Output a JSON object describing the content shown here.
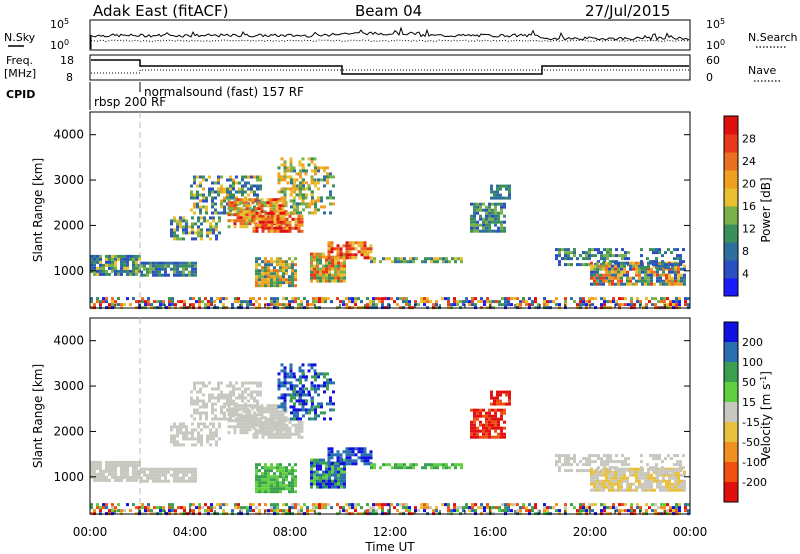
{
  "header": {
    "station": "Adak East (fitACF)",
    "beam": "Beam 04",
    "date": "27/Jul/2015"
  },
  "noise_panel": {
    "left_label": "N.Sky",
    "right_label": "N.Search",
    "left_ticks": [
      "10^5",
      "10^0"
    ],
    "right_ticks": [
      "10^5",
      "10^0"
    ]
  },
  "freq_panel": {
    "label_line1": "Freq.",
    "label_line2": "[MHz]",
    "left_ticks": [
      "18",
      "8"
    ],
    "right_ticks": [
      "60",
      "0"
    ],
    "right_label": "Nave"
  },
  "cpid": {
    "label": "CPID",
    "segments": [
      {
        "text": "rbsp  200 RF"
      },
      {
        "text": "normalsound (fast) 157 RF"
      }
    ]
  },
  "chart_data": [
    {
      "type": "heatmap",
      "name": "power",
      "ylabel": "Slant Range [km]",
      "xlabel": "",
      "ylim": [
        180,
        4500
      ],
      "yticks": [
        1000,
        2000,
        3000,
        4000
      ],
      "xlim_hours": [
        0,
        24
      ],
      "colorbar": {
        "label": "Power [dB]",
        "ticks": [
          "4",
          "8",
          "12",
          "16",
          "20",
          "24",
          "28"
        ],
        "colors": [
          "#1a1aff",
          "#2a4fc0",
          "#2f6f9e",
          "#3a8f5a",
          "#7ab04a",
          "#e8c030",
          "#f0a020",
          "#e87020",
          "#e83a1a",
          "#e01010"
        ]
      }
    },
    {
      "type": "heatmap",
      "name": "velocity",
      "ylabel": "Slant Range [km]",
      "xlabel": "Time UT",
      "ylim": [
        180,
        4500
      ],
      "yticks": [
        1000,
        2000,
        3000,
        4000
      ],
      "xticks": [
        "00:00",
        "04:00",
        "08:00",
        "12:00",
        "16:00",
        "20:00",
        "00:00"
      ],
      "xlim_hours": [
        0,
        24
      ],
      "colorbar": {
        "label": "Velocity [m s^-1]",
        "ticks": [
          "200",
          "100",
          "50",
          "15",
          "-15",
          "-50",
          "-100",
          "-200"
        ],
        "colors": [
          "#1010e0",
          "#2a70b0",
          "#3aa050",
          "#60d040",
          "#c8c8c0",
          "#e8c040",
          "#f09020",
          "#f05010",
          "#e01010"
        ]
      }
    }
  ]
}
